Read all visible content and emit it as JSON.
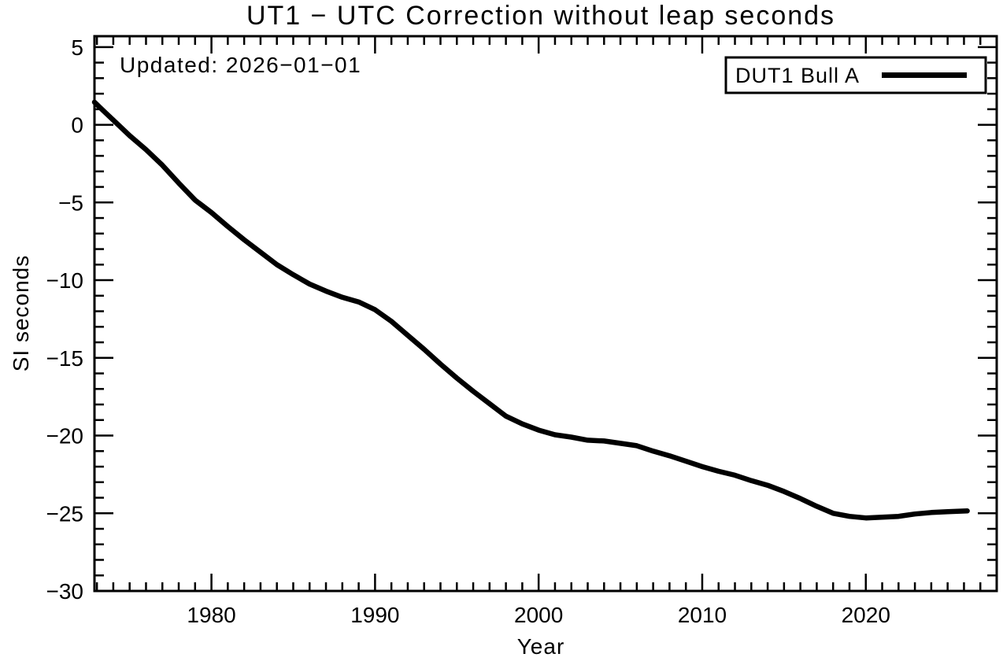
{
  "page": {
    "background": "#ffffff",
    "ink": "#000000"
  },
  "chart_data": {
    "type": "line",
    "title": "UT1 − UTC Correction without leap seconds",
    "annotation": "Updated: 2026−01−01",
    "xlabel": "Year",
    "ylabel": "SI seconds",
    "xlim": [
      1972.85,
      2028.0
    ],
    "ylim": [
      -30,
      5.7
    ],
    "grid": false,
    "x_minor_step": 1,
    "y_minor_step": 1,
    "x_major_ticks": [
      {
        "value": 1980,
        "label": "1980"
      },
      {
        "value": 1990,
        "label": "1990"
      },
      {
        "value": 2000,
        "label": "2000"
      },
      {
        "value": 2010,
        "label": "2010"
      },
      {
        "value": 2020,
        "label": "2020"
      }
    ],
    "y_major_ticks": [
      {
        "value": 5,
        "label": "5"
      },
      {
        "value": 0,
        "label": "0"
      },
      {
        "value": -5,
        "label": "−5"
      },
      {
        "value": -10,
        "label": "−10"
      },
      {
        "value": -15,
        "label": "−15"
      },
      {
        "value": -20,
        "label": "−20"
      },
      {
        "value": -25,
        "label": "−25"
      },
      {
        "value": -30,
        "label": "−30"
      }
    ],
    "legend": {
      "position": "top-right",
      "entries": [
        {
          "label": "DUT1 Bull A",
          "color": "#000000",
          "line_width": 7
        }
      ]
    },
    "series": [
      {
        "name": "DUT1 Bull A",
        "color": "#000000",
        "width": 6.5,
        "points": [
          [
            1972.85,
            1.45
          ],
          [
            1973.5,
            0.8
          ],
          [
            1974,
            0.3
          ],
          [
            1975,
            -0.7
          ],
          [
            1976,
            -1.6
          ],
          [
            1977,
            -2.6
          ],
          [
            1978,
            -3.75
          ],
          [
            1979,
            -4.85
          ],
          [
            1980,
            -5.65
          ],
          [
            1981,
            -6.55
          ],
          [
            1982,
            -7.4
          ],
          [
            1983,
            -8.2
          ],
          [
            1984,
            -9.0
          ],
          [
            1985,
            -9.65
          ],
          [
            1986,
            -10.25
          ],
          [
            1987,
            -10.7
          ],
          [
            1988,
            -11.1
          ],
          [
            1989,
            -11.4
          ],
          [
            1990,
            -11.9
          ],
          [
            1991,
            -12.65
          ],
          [
            1992,
            -13.55
          ],
          [
            1993,
            -14.45
          ],
          [
            1994,
            -15.4
          ],
          [
            1995,
            -16.3
          ],
          [
            1996,
            -17.15
          ],
          [
            1997,
            -17.95
          ],
          [
            1998,
            -18.75
          ],
          [
            1999,
            -19.25
          ],
          [
            2000,
            -19.65
          ],
          [
            2001,
            -19.95
          ],
          [
            2002,
            -20.1
          ],
          [
            2003,
            -20.3
          ],
          [
            2004,
            -20.35
          ],
          [
            2005,
            -20.5
          ],
          [
            2006,
            -20.65
          ],
          [
            2007,
            -21.0
          ],
          [
            2008,
            -21.3
          ],
          [
            2009,
            -21.65
          ],
          [
            2010,
            -22.0
          ],
          [
            2011,
            -22.3
          ],
          [
            2012,
            -22.55
          ],
          [
            2013,
            -22.9
          ],
          [
            2014,
            -23.2
          ],
          [
            2015,
            -23.6
          ],
          [
            2016,
            -24.05
          ],
          [
            2017,
            -24.55
          ],
          [
            2018,
            -25.0
          ],
          [
            2019,
            -25.2
          ],
          [
            2020,
            -25.3
          ],
          [
            2021,
            -25.25
          ],
          [
            2022,
            -25.2
          ],
          [
            2023,
            -25.05
          ],
          [
            2024,
            -24.95
          ],
          [
            2025,
            -24.9
          ],
          [
            2026.2,
            -24.85
          ]
        ]
      }
    ]
  }
}
